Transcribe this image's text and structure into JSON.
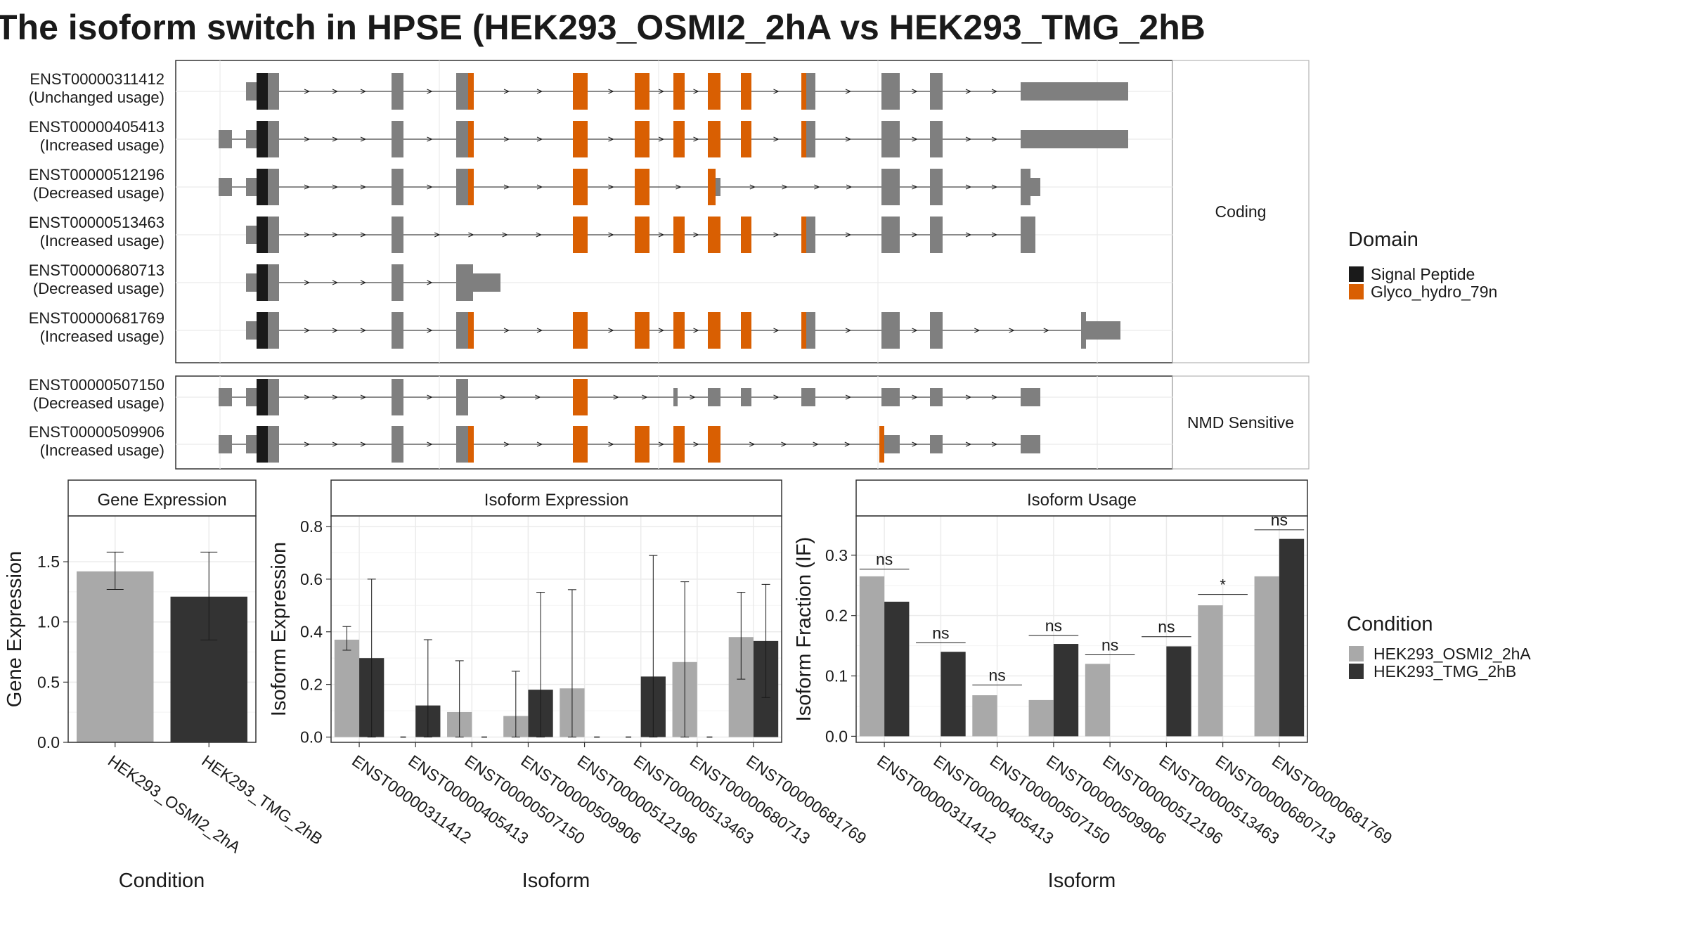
{
  "title": "The isoform switch in HPSE (HEK293_OSMI2_2hA vs HEK293_TMG_2hB",
  "colors": {
    "signal": "#1a1a1a",
    "glyco": "#d95f02",
    "exon": "#7f7f7f",
    "cond1": "#a9a9a9",
    "cond2": "#333333"
  },
  "domain_legend": {
    "title": "Domain",
    "items": [
      {
        "label": "Signal Peptide",
        "color": "#1a1a1a"
      },
      {
        "label": "Glyco_hydro_79n",
        "color": "#d95f02"
      }
    ]
  },
  "condition_legend": {
    "title": "Condition",
    "items": [
      {
        "label": "HEK293_OSMI2_2hA",
        "color": "#a9a9a9"
      },
      {
        "label": "HEK293_TMG_2hB",
        "color": "#333333"
      }
    ]
  },
  "structure": {
    "panels": [
      {
        "strip": "Coding",
        "transcripts": [
          {
            "id": "ENST00000311412",
            "usage": "(Unchanged usage)",
            "exons": [
              [
                0,
                0,
                "u"
              ],
              [
                1,
                0,
                "c"
              ],
              [
                2,
                0,
                "c"
              ],
              [
                3,
                0,
                "c"
              ],
              [
                4,
                0,
                "c"
              ],
              [
                5,
                0,
                "c"
              ],
              [
                6,
                0,
                "c"
              ],
              [
                7,
                0,
                "c"
              ],
              [
                8,
                0,
                "c"
              ],
              [
                9,
                0,
                "c"
              ],
              [
                10,
                0,
                "c"
              ],
              [
                11,
                0,
                "c"
              ],
              [
                12,
                0,
                "c"
              ],
              [
                13,
                0,
                "c"
              ],
              [
                14,
                0,
                "c"
              ],
              [
                15,
                0,
                "u"
              ]
            ]
          },
          {
            "id": "ENST00000405413",
            "usage": "(Increased usage)",
            "exons": [
              [
                16,
                0,
                "u"
              ],
              [
                0,
                0,
                "u"
              ],
              [
                1,
                0,
                "c"
              ],
              [
                2,
                0,
                "c"
              ],
              [
                3,
                0,
                "c"
              ],
              [
                4,
                0,
                "c"
              ],
              [
                5,
                0,
                "c"
              ],
              [
                6,
                0,
                "c"
              ],
              [
                7,
                0,
                "c"
              ],
              [
                8,
                0,
                "c"
              ],
              [
                9,
                0,
                "c"
              ],
              [
                10,
                0,
                "c"
              ],
              [
                11,
                0,
                "c"
              ],
              [
                12,
                0,
                "c"
              ],
              [
                13,
                0,
                "c"
              ],
              [
                14,
                0,
                "c"
              ],
              [
                15,
                0,
                "u"
              ]
            ]
          },
          {
            "id": "ENST00000512196",
            "usage": "(Decreased usage)",
            "exons": [
              [
                16,
                0,
                "u"
              ],
              [
                0,
                0,
                "u"
              ],
              [
                1,
                0,
                "c"
              ],
              [
                2,
                0,
                "c"
              ],
              [
                3,
                0,
                "c"
              ],
              [
                4,
                0,
                "c"
              ],
              [
                5,
                0,
                "c"
              ],
              [
                6,
                0,
                "c"
              ],
              [
                7,
                0,
                "c"
              ],
              [
                17,
                0,
                "c"
              ],
              [
                18,
                0,
                "u"
              ],
              [
                13,
                0,
                "c"
              ],
              [
                14,
                0,
                "c"
              ],
              [
                19,
                0,
                "c"
              ],
              [
                20,
                0,
                "u"
              ]
            ]
          },
          {
            "id": "ENST00000513463",
            "usage": "(Increased usage)",
            "exons": [
              [
                0,
                0,
                "u"
              ],
              [
                1,
                0,
                "c"
              ],
              [
                2,
                0,
                "c"
              ],
              [
                3,
                0,
                "c"
              ],
              [
                6,
                0,
                "c"
              ],
              [
                7,
                0,
                "c"
              ],
              [
                8,
                0,
                "c"
              ],
              [
                9,
                0,
                "c"
              ],
              [
                10,
                0,
                "c"
              ],
              [
                11,
                0,
                "c"
              ],
              [
                12,
                0,
                "c"
              ],
              [
                13,
                0,
                "c"
              ],
              [
                14,
                0,
                "c"
              ],
              [
                15,
                0,
                "c"
              ]
            ]
          },
          {
            "id": "ENST00000680713",
            "usage": "(Decreased usage)",
            "exons": [
              [
                0,
                0,
                "u"
              ],
              [
                1,
                0,
                "c"
              ],
              [
                2,
                0,
                "c"
              ],
              [
                3,
                0,
                "c"
              ],
              [
                21,
                0,
                "c"
              ],
              [
                22,
                0,
                "u"
              ]
            ]
          },
          {
            "id": "ENST00000681769",
            "usage": "(Increased usage)",
            "exons": [
              [
                0,
                0,
                "u"
              ],
              [
                1,
                0,
                "c"
              ],
              [
                2,
                0,
                "c"
              ],
              [
                3,
                0,
                "c"
              ],
              [
                4,
                0,
                "c"
              ],
              [
                5,
                0,
                "c"
              ],
              [
                6,
                0,
                "c"
              ],
              [
                7,
                0,
                "c"
              ],
              [
                8,
                0,
                "c"
              ],
              [
                9,
                0,
                "c"
              ],
              [
                10,
                0,
                "c"
              ],
              [
                11,
                0,
                "c"
              ],
              [
                12,
                0,
                "c"
              ],
              [
                13,
                0,
                "c"
              ],
              [
                14,
                0,
                "c"
              ],
              [
                23,
                0,
                "c"
              ],
              [
                24,
                0,
                "u"
              ]
            ]
          }
        ]
      },
      {
        "strip": "NMD Sensitive",
        "transcripts": [
          {
            "id": "ENST00000507150",
            "usage": "(Decreased usage)",
            "exons": [
              [
                16,
                0,
                "u"
              ],
              [
                0,
                0,
                "u"
              ],
              [
                1,
                0,
                "c"
              ],
              [
                2,
                0,
                "c"
              ],
              [
                3,
                0,
                "c"
              ],
              [
                4,
                0,
                "c"
              ],
              [
                25,
                0,
                "c"
              ],
              [
                26,
                0,
                "u"
              ],
              [
                27,
                0,
                "u"
              ],
              [
                28,
                0,
                "u"
              ],
              [
                29,
                0,
                "u"
              ],
              [
                30,
                0,
                "u"
              ],
              [
                31,
                0,
                "u"
              ],
              [
                32,
                0,
                "u"
              ]
            ]
          },
          {
            "id": "ENST00000509906",
            "usage": "(Increased usage)",
            "exons": [
              [
                16,
                0,
                "u"
              ],
              [
                0,
                0,
                "u"
              ],
              [
                1,
                0,
                "c"
              ],
              [
                2,
                0,
                "c"
              ],
              [
                3,
                0,
                "c"
              ],
              [
                4,
                0,
                "c"
              ],
              [
                5,
                0,
                "c"
              ],
              [
                6,
                0,
                "c"
              ],
              [
                7,
                0,
                "c"
              ],
              [
                8,
                0,
                "c"
              ],
              [
                9,
                0,
                "c"
              ],
              [
                33,
                0,
                "c"
              ],
              [
                34,
                0,
                "u"
              ],
              [
                31,
                0,
                "u"
              ],
              [
                32,
                0,
                "u"
              ]
            ]
          }
        ]
      }
    ]
  },
  "chart_data": [
    {
      "type": "bar",
      "title": "Gene Expression",
      "xlabel": "Condition",
      "ylabel": "Gene Expression",
      "categories": [
        "HEK293_OSMI2_2hA",
        "HEK293_TMG_2hB"
      ],
      "values": [
        1.42,
        1.21
      ],
      "error_low": [
        1.27,
        0.85
      ],
      "error_high": [
        1.58,
        1.58
      ],
      "colors": [
        "#a9a9a9",
        "#333333"
      ],
      "ylim": [
        0,
        1.88
      ],
      "yticks": [
        0.0,
        0.5,
        1.0,
        1.5
      ],
      "ytick_labels": [
        "0.0",
        "0.5",
        "1.0",
        "1.5"
      ],
      "grid": true
    },
    {
      "type": "bar",
      "title": "Isoform Expression",
      "xlabel": "Isoform",
      "ylabel": "Isoform Expression",
      "categories": [
        "ENST00000311412",
        "ENST00000405413",
        "ENST00000507150",
        "ENST00000509906",
        "ENST00000512196",
        "ENST00000513463",
        "ENST00000680713",
        "ENST00000681769"
      ],
      "series": [
        {
          "name": "HEK293_OSMI2_2hA",
          "color": "#a9a9a9",
          "values": [
            0.37,
            0.0,
            0.095,
            0.08,
            0.185,
            0.0,
            0.285,
            0.38
          ],
          "error_low": [
            0.33,
            0.0,
            0.0,
            0.0,
            0.0,
            0.0,
            0.0,
            0.22
          ],
          "error_high": [
            0.42,
            0.0,
            0.29,
            0.25,
            0.56,
            0.0,
            0.59,
            0.55
          ]
        },
        {
          "name": "HEK293_TMG_2hB",
          "color": "#333333",
          "values": [
            0.3,
            0.12,
            0.0,
            0.18,
            0.0,
            0.23,
            0.0,
            0.365
          ],
          "error_low": [
            0.0,
            0.0,
            0.0,
            0.0,
            0.0,
            0.0,
            0.0,
            0.15
          ],
          "error_high": [
            0.6,
            0.37,
            0.0,
            0.55,
            0.0,
            0.69,
            0.0,
            0.58
          ]
        }
      ],
      "ylim": [
        -0.02,
        0.84
      ],
      "yticks": [
        0.0,
        0.2,
        0.4,
        0.6,
        0.8
      ],
      "ytick_labels": [
        "0.0",
        "0.2",
        "0.4",
        "0.6",
        "0.8"
      ],
      "grid": true
    },
    {
      "type": "bar",
      "title": "Isoform Usage",
      "xlabel": "Isoform",
      "ylabel": "Isoform Fraction (IF)",
      "categories": [
        "ENST00000311412",
        "ENST00000405413",
        "ENST00000507150",
        "ENST00000509906",
        "ENST00000512196",
        "ENST00000513463",
        "ENST00000680713",
        "ENST00000681769"
      ],
      "series": [
        {
          "name": "HEK293_OSMI2_2hA",
          "color": "#a9a9a9",
          "values": [
            0.265,
            0.0,
            0.068,
            0.06,
            0.12,
            0.0,
            0.217,
            0.265
          ]
        },
        {
          "name": "HEK293_TMG_2hB",
          "color": "#333333",
          "values": [
            0.223,
            0.14,
            0.0,
            0.153,
            0.0,
            0.149,
            0.0,
            0.327
          ]
        }
      ],
      "significance": [
        "ns",
        "ns",
        "ns",
        "ns",
        "ns",
        "ns",
        "*",
        "ns"
      ],
      "sig_y": [
        0.277,
        0.155,
        0.085,
        0.167,
        0.135,
        0.165,
        0.235,
        0.342
      ],
      "ylim": [
        -0.01,
        0.365
      ],
      "yticks": [
        0.0,
        0.1,
        0.2,
        0.3
      ],
      "ytick_labels": [
        "0.0",
        "0.1",
        "0.2",
        "0.3"
      ],
      "grid": true
    }
  ]
}
